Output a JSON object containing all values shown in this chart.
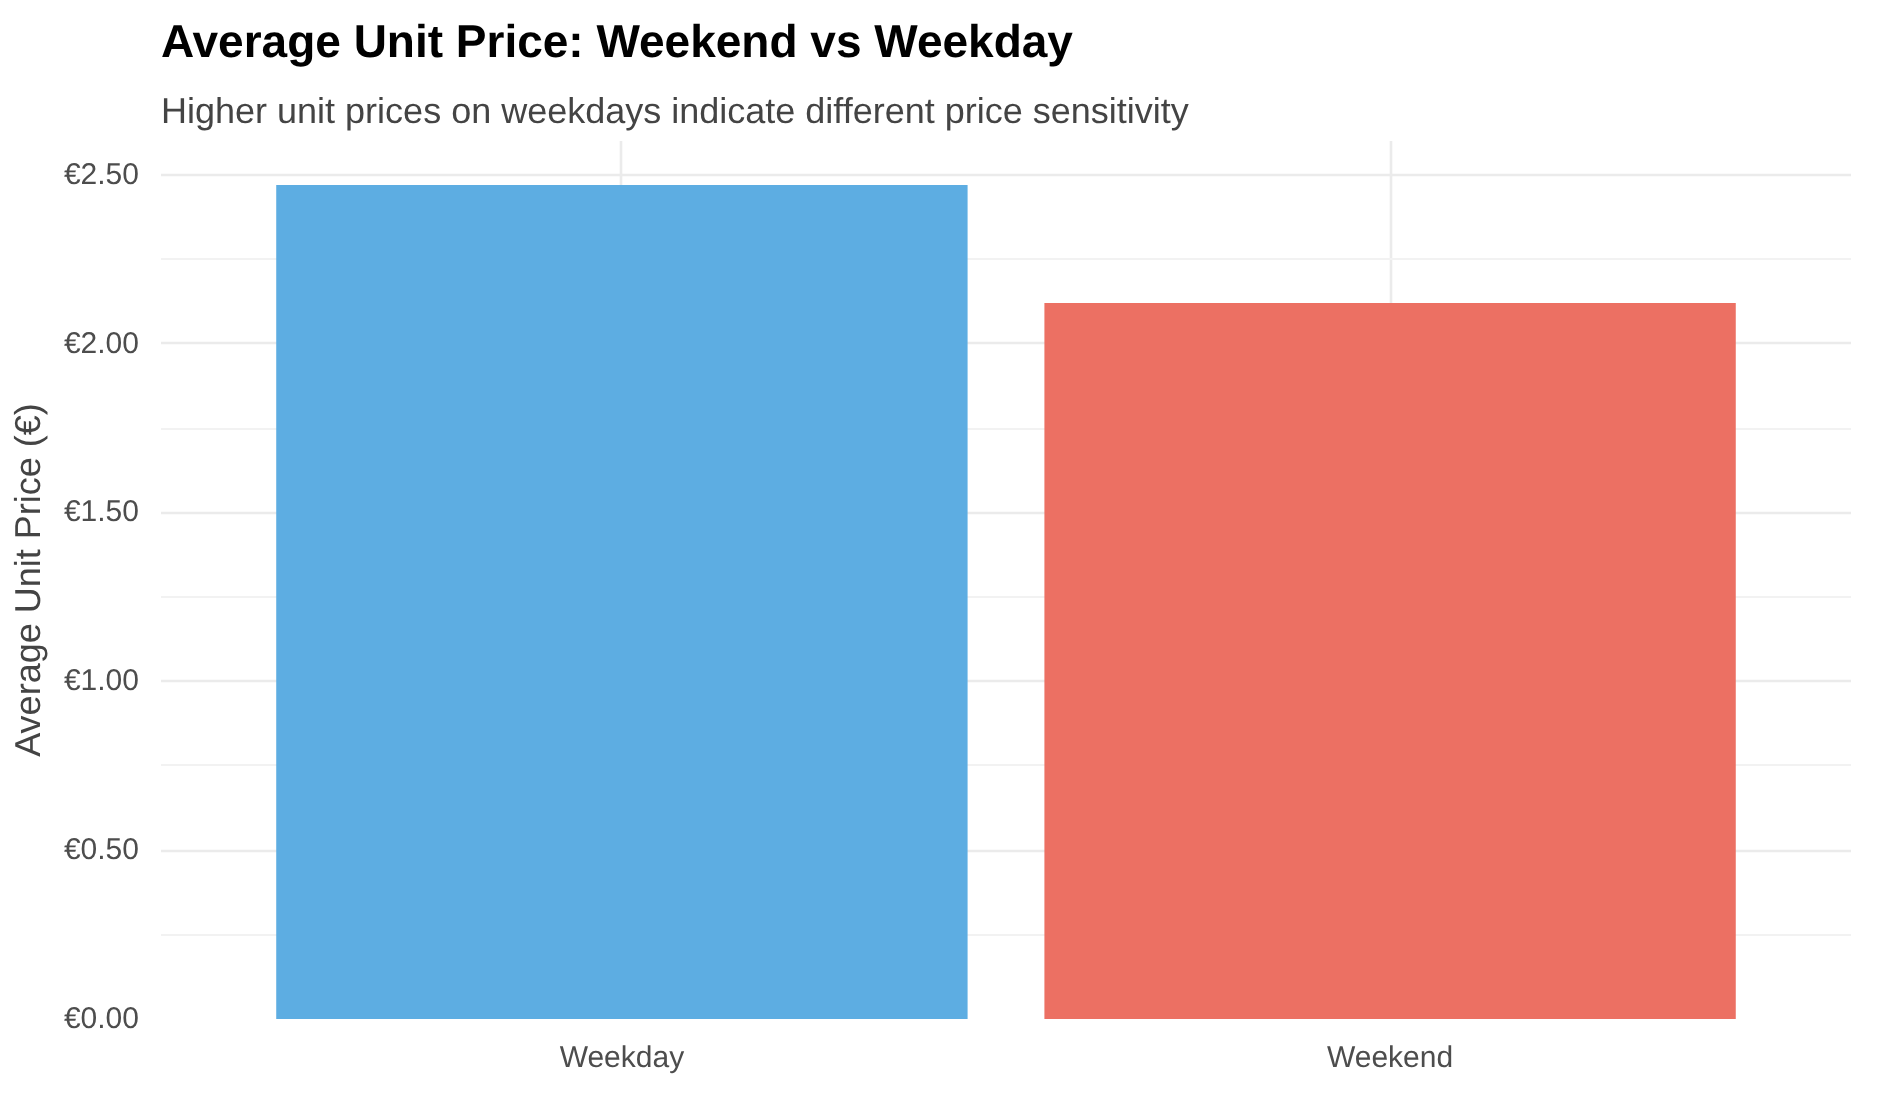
{
  "chart_data": {
    "type": "bar",
    "title": "Average Unit Price: Weekend vs Weekday",
    "subtitle": "Higher unit prices on weekdays indicate different price sensitivity",
    "ylabel": "Average Unit Price (€)",
    "categories": [
      "Weekday",
      "Weekend"
    ],
    "values": [
      2.47,
      2.12
    ],
    "colors": [
      "#5dade2",
      "#ec7063"
    ],
    "ylim": [
      0,
      2.6
    ],
    "yticks": [
      {
        "value": 0,
        "label": "€0.00"
      },
      {
        "value": 0.5,
        "label": "€0.50"
      },
      {
        "value": 1,
        "label": "€1.00"
      },
      {
        "value": 1.5,
        "label": "€1.50"
      },
      {
        "value": 2,
        "label": "€2.00"
      },
      {
        "value": 2.5,
        "label": "€2.50"
      }
    ],
    "grid": true
  }
}
